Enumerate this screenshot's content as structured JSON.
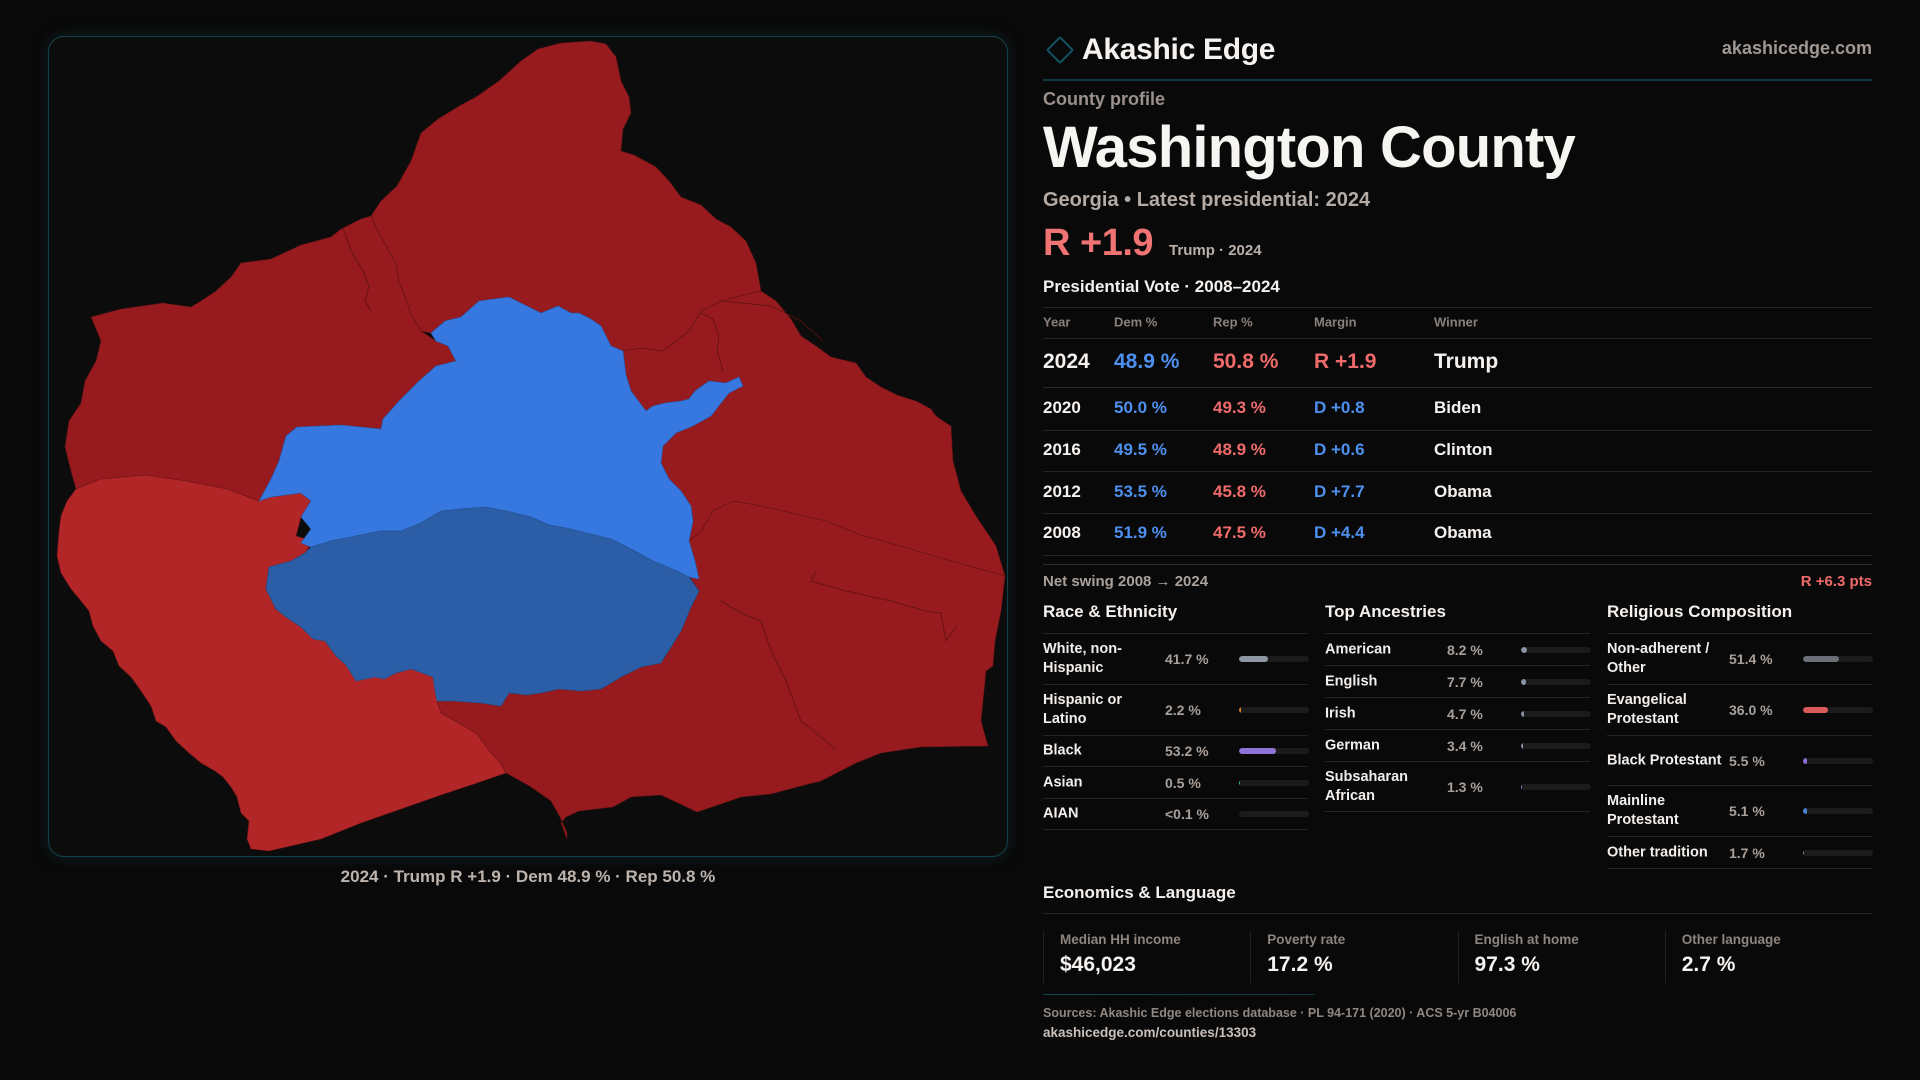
{
  "brand": {
    "name": "Akashic Edge",
    "site": "akashicedge.com",
    "icon": "diamond-icon"
  },
  "profile": {
    "kicker": "County profile",
    "title": "Washington County",
    "subtitle": "Georgia • Latest presidential: 2024",
    "headline_margin": "R +1.9",
    "headline_winner": "Trump · 2024"
  },
  "map": {
    "caption": "2024 · Trump R +1.9 · Dem 48.9 % · Rep 50.8 %",
    "colors": {
      "rep_strong": "#971b1e",
      "rep_lean": "#b22628",
      "dem_strong": "#3777e0",
      "dem_lean": "#2b5ea6"
    }
  },
  "vote_table": {
    "title": "Presidential Vote · 2008–2024",
    "headers": {
      "year": "Year",
      "dem": "Dem %",
      "rep": "Rep %",
      "margin": "Margin",
      "winner": "Winner"
    },
    "rows": [
      {
        "year": "2024",
        "dem": "48.9 %",
        "rep": "50.8 %",
        "margin": "R +1.9",
        "winner": "Trump",
        "party": "R"
      },
      {
        "year": "2020",
        "dem": "50.0 %",
        "rep": "49.3 %",
        "margin": "D +0.8",
        "winner": "Biden",
        "party": "D"
      },
      {
        "year": "2016",
        "dem": "49.5 %",
        "rep": "48.9 %",
        "margin": "D +0.6",
        "winner": "Clinton",
        "party": "D"
      },
      {
        "year": "2012",
        "dem": "53.5 %",
        "rep": "45.8 %",
        "margin": "D +7.7",
        "winner": "Obama",
        "party": "D"
      },
      {
        "year": "2008",
        "dem": "51.9 %",
        "rep": "47.5 %",
        "margin": "D +4.4",
        "winner": "Obama",
        "party": "D"
      }
    ],
    "swing_label": "Net swing 2008 → 2024",
    "swing_value": "R +6.3 pts"
  },
  "race": {
    "title": "Race & Ethnicity",
    "items": [
      {
        "label": "White, non-Hispanic",
        "value": "41.7 %",
        "pct": 41.7,
        "color": "#8e97a5"
      },
      {
        "label": "Hispanic or Latino",
        "value": "2.2 %",
        "pct": 2.2,
        "color": "#d97b1a"
      },
      {
        "label": "Black",
        "value": "53.2 %",
        "pct": 53.2,
        "color": "#8f74d8"
      },
      {
        "label": "Asian",
        "value": "0.5 %",
        "pct": 0.5,
        "color": "#1fb585"
      },
      {
        "label": "AIAN",
        "value": "<0.1 %",
        "pct": 0.0,
        "color": "#c0785a"
      }
    ]
  },
  "ancestry": {
    "title": "Top Ancestries",
    "items": [
      {
        "label": "American",
        "value": "8.2 %",
        "pct": 8.2,
        "color": "#8a93a3"
      },
      {
        "label": "English",
        "value": "7.7 %",
        "pct": 7.7,
        "color": "#8a93a3"
      },
      {
        "label": "Irish",
        "value": "4.7 %",
        "pct": 4.7,
        "color": "#8a93a3"
      },
      {
        "label": "German",
        "value": "3.4 %",
        "pct": 3.4,
        "color": "#8a93a3"
      },
      {
        "label": "Subsaharan African",
        "value": "1.3 %",
        "pct": 1.3,
        "color": "#8f74d8"
      }
    ]
  },
  "religion": {
    "title": "Religious Composition",
    "items": [
      {
        "label": "Non-adherent / Other",
        "value": "51.4 %",
        "pct": 51.4,
        "color": "#6b6f78"
      },
      {
        "label": "Evangelical Protestant",
        "value": "36.0 %",
        "pct": 36.0,
        "color": "#d95b5b"
      },
      {
        "label": "Black Protestant",
        "value": "5.5 %",
        "pct": 5.5,
        "color": "#8a6fd6"
      },
      {
        "label": "Mainline Protestant",
        "value": "5.1 %",
        "pct": 5.1,
        "color": "#4b82d8"
      },
      {
        "label": "Other tradition",
        "value": "1.7 %",
        "pct": 1.7,
        "color": "#7a7a7a"
      }
    ]
  },
  "economics": {
    "title": "Economics & Language",
    "cards": [
      {
        "label": "Median HH income",
        "value": "$46,023"
      },
      {
        "label": "Poverty rate",
        "value": "17.2 %"
      },
      {
        "label": "English at home",
        "value": "97.3 %"
      },
      {
        "label": "Other language",
        "value": "2.7 %"
      }
    ]
  },
  "footer": {
    "sources": "Sources: Akashic Edge elections database · PL 94-171 (2020) · ACS 5-yr B04006",
    "url": "akashicedge.com/counties/13303"
  }
}
